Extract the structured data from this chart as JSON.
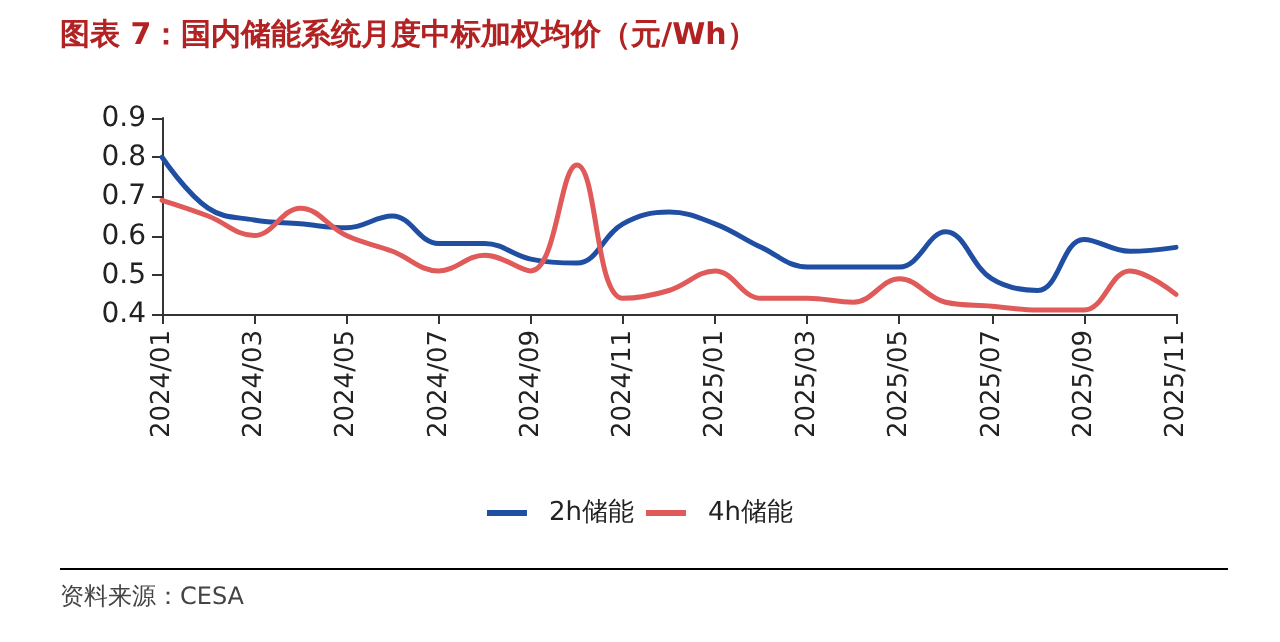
{
  "chart_data": {
    "type": "line",
    "title": "图表 7：国内储能系统月度中标加权均价（元/Wh）",
    "categories": [
      "2024/01",
      null,
      "2024/03",
      null,
      "2024/05",
      null,
      "2024/07",
      null,
      "2024/09",
      null,
      "2024/11",
      null,
      "2025/01",
      null,
      "2025/03",
      null,
      "2025/05",
      null,
      "2025/07",
      null,
      "2025/09",
      null,
      "2025/11"
    ],
    "series": [
      {
        "name": "2h储能",
        "color": "#1f4ea3",
        "values": [
          0.8,
          0.67,
          0.64,
          0.63,
          0.62,
          0.65,
          0.58,
          0.58,
          0.54,
          0.53,
          0.63,
          0.66,
          0.63,
          0.57,
          0.52,
          0.52,
          0.52,
          0.61,
          0.49,
          0.46,
          0.59,
          0.56,
          0.57
        ]
      },
      {
        "name": "4h储能",
        "color": "#e05a5a",
        "values": [
          0.69,
          0.65,
          0.6,
          0.67,
          0.6,
          0.56,
          0.51,
          0.55,
          0.51,
          0.78,
          0.44,
          0.46,
          0.51,
          0.44,
          0.44,
          0.43,
          0.49,
          0.43,
          0.42,
          0.41,
          0.41,
          0.51,
          0.45
        ]
      }
    ],
    "ylim": [
      0.4,
      0.9
    ],
    "yticks": [
      0.4,
      0.5,
      0.6,
      0.7,
      0.8,
      0.9
    ],
    "grid": false,
    "legend": "bottom",
    "marker": "none",
    "line_style": "solid",
    "annotations": [
      "资料来源：CESA"
    ]
  }
}
